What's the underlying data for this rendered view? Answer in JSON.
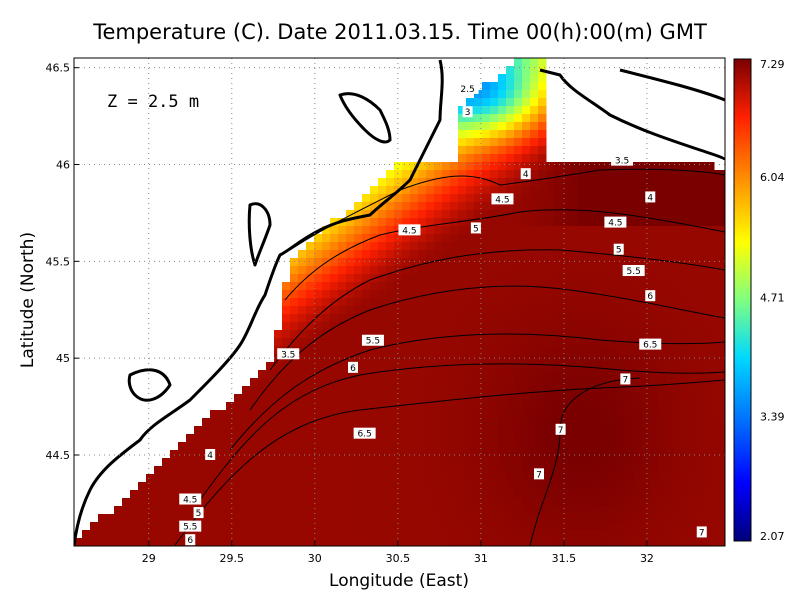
{
  "chart_data": {
    "type": "heatmap",
    "title": "Temperature (C). Date 2011.03.15. Time 00(h):00(m) GMT",
    "xlabel": "Longitude (East)",
    "ylabel": "Latitude (North)",
    "depth_label": "Z = 2.5 m",
    "xlim": [
      28.55,
      32.47
    ],
    "ylim": [
      44.03,
      46.55
    ],
    "x_ticks": [
      29,
      29.5,
      30,
      30.5,
      31,
      31.5,
      32
    ],
    "x_tick_labels": [
      "29",
      "29.5",
      "30",
      "30.5",
      "31",
      "31.5",
      "32"
    ],
    "y_ticks": [
      44.5,
      45,
      45.5,
      46,
      46.5
    ],
    "y_tick_labels": [
      "44.5",
      "45",
      "45.5",
      "46",
      "46.5"
    ],
    "grid": true,
    "colorbar": {
      "min": 2.07,
      "max": 7.29,
      "labels": [
        "7.29",
        "6.04",
        "4.71",
        "3.39",
        "2.07"
      ],
      "label_values": [
        7.29,
        6.04,
        4.71,
        3.39,
        2.07
      ]
    },
    "contour_labels": [
      {
        "text": "2.5",
        "lon": 30.92,
        "lat": 46.39
      },
      {
        "text": "3",
        "lon": 30.92,
        "lat": 46.27
      },
      {
        "text": "3.5",
        "lon": 31.85,
        "lat": 46.02
      },
      {
        "text": "4",
        "lon": 31.27,
        "lat": 45.95
      },
      {
        "text": "4.5",
        "lon": 31.13,
        "lat": 45.82
      },
      {
        "text": "4",
        "lon": 32.02,
        "lat": 45.83
      },
      {
        "text": "4.5",
        "lon": 31.81,
        "lat": 45.7
      },
      {
        "text": "4.5",
        "lon": 30.57,
        "lat": 45.66
      },
      {
        "text": "5",
        "lon": 30.97,
        "lat": 45.67
      },
      {
        "text": "5",
        "lon": 31.83,
        "lat": 45.56
      },
      {
        "text": "5.5",
        "lon": 31.92,
        "lat": 45.45
      },
      {
        "text": "6",
        "lon": 32.02,
        "lat": 45.32
      },
      {
        "text": "3.5",
        "lon": 29.84,
        "lat": 45.02
      },
      {
        "text": "5.5",
        "lon": 30.35,
        "lat": 45.09
      },
      {
        "text": "6.5",
        "lon": 32.02,
        "lat": 45.07
      },
      {
        "text": "6",
        "lon": 30.23,
        "lat": 44.95
      },
      {
        "text": "7",
        "lon": 31.87,
        "lat": 44.89
      },
      {
        "text": "6.5",
        "lon": 30.3,
        "lat": 44.61
      },
      {
        "text": "7",
        "lon": 31.48,
        "lat": 44.63
      },
      {
        "text": "4",
        "lon": 29.37,
        "lat": 44.5
      },
      {
        "text": "7",
        "lon": 31.35,
        "lat": 44.4
      },
      {
        "text": "4.5",
        "lon": 29.25,
        "lat": 44.27
      },
      {
        "text": "5",
        "lon": 29.3,
        "lat": 44.2
      },
      {
        "text": "5.5",
        "lon": 29.25,
        "lat": 44.13
      },
      {
        "text": "6",
        "lon": 29.25,
        "lat": 44.06
      },
      {
        "text": "7",
        "lon": 32.33,
        "lat": 44.1
      }
    ]
  },
  "colors": {
    "colormap": [
      "#000080",
      "#0000ff",
      "#0080ff",
      "#00ffff",
      "#80ff80",
      "#ffff00",
      "#ff8000",
      "#ff0000",
      "#800000"
    ],
    "coastline": "#000000",
    "land": "#ffffff",
    "grid": "#888888"
  }
}
